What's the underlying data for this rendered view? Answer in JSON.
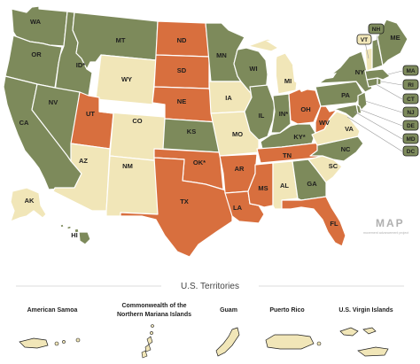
{
  "colors": {
    "green": "#7d8a5b",
    "orange": "#d86f3e",
    "cream": "#f1e6b8",
    "outline": "#ffffff"
  },
  "states": {
    "WA": "green",
    "OR": "green",
    "CA": "green",
    "ID": "green",
    "NV": "green",
    "MT": "green",
    "WY": "cream",
    "UT": "orange",
    "CO": "cream",
    "AZ": "cream",
    "NM": "cream",
    "ND": "orange",
    "SD": "orange",
    "NE": "orange",
    "KS": "green",
    "OK": "orange",
    "TX": "orange",
    "MN": "green",
    "IA": "cream",
    "MO": "cream",
    "AR": "orange",
    "LA": "orange",
    "WI": "green",
    "IL": "green",
    "MI": "cream",
    "IN": "green",
    "OH": "orange",
    "KY": "green",
    "TN": "orange",
    "MS": "orange",
    "AL": "cream",
    "GA": "green",
    "FL": "orange",
    "SC": "cream",
    "NC": "green",
    "VA": "cream",
    "WV": "orange",
    "PA": "green",
    "NY": "green",
    "NJ": "green",
    "DE": "green",
    "MD": "green",
    "DC": "green",
    "CT": "green",
    "RI": "green",
    "MA": "green",
    "VT": "cream",
    "NH": "green",
    "ME": "green",
    "AK": "cream",
    "HI": "green"
  },
  "labels": {
    "WA": "WA",
    "OR": "OR",
    "CA": "CA",
    "ID": "ID*",
    "NV": "NV",
    "MT": "MT",
    "WY": "WY",
    "UT": "UT",
    "CO": "CO",
    "AZ": "AZ",
    "NM": "NM",
    "ND": "ND",
    "SD": "SD",
    "NE": "NE",
    "KS": "KS",
    "OK": "OK*",
    "TX": "TX",
    "MN": "MN",
    "IA": "IA",
    "MO": "MO",
    "AR": "AR",
    "LA": "LA",
    "WI": "WI",
    "IL": "IL",
    "MI": "MI",
    "IN": "IN*",
    "OH": "OH",
    "KY": "KY*",
    "TN": "TN",
    "MS": "MS",
    "AL": "AL",
    "GA": "GA",
    "FL": "FL",
    "SC": "SC",
    "NC": "NC",
    "VA": "VA",
    "WV": "WV",
    "PA": "PA",
    "NY": "NY",
    "ME": "ME",
    "AK": "AK",
    "HI": "HI",
    "VT": "VT",
    "NH": "NH",
    "MA": "MA",
    "RI": "RI",
    "CT": "CT",
    "NJ": "NJ",
    "DE": "DE",
    "MD": "MD",
    "DC": "DC"
  },
  "badge": {
    "title": "MAP",
    "subtitle": "movement advancement project"
  },
  "territories": {
    "heading": "U.S. Territories",
    "items": [
      {
        "name": "American Samoa"
      },
      {
        "name": "Commonwealth of the Northern Mariana Islands"
      },
      {
        "name": "Guam"
      },
      {
        "name": "Puerto Rico"
      },
      {
        "name": "U.S. Virgin Islands"
      }
    ]
  }
}
